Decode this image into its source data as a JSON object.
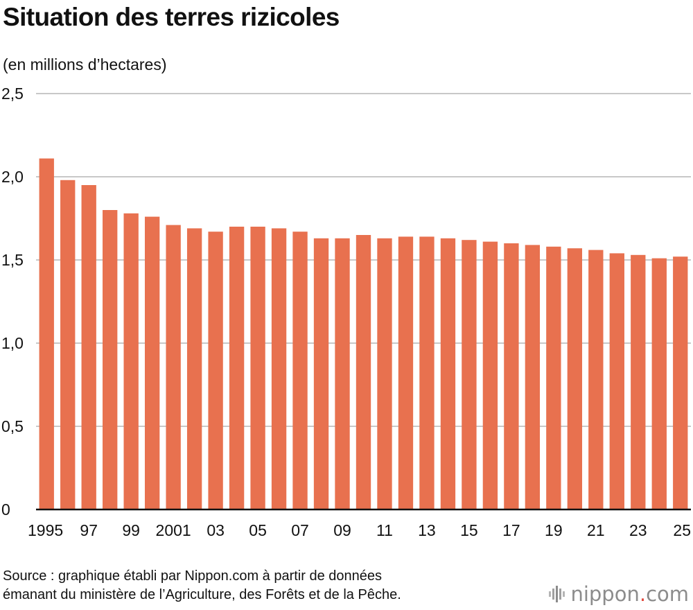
{
  "header": {
    "title": "Situation des terres rizicoles",
    "unit_label": "(en millions d’hectares)"
  },
  "chart_data": {
    "type": "bar",
    "title": "Situation des terres rizicoles",
    "ylabel": "(en millions d’hectares)",
    "xlabel": "",
    "ylim": [
      0,
      2.5
    ],
    "y_ticks": [
      0,
      0.5,
      1.0,
      1.5,
      2.0,
      2.5
    ],
    "y_tick_labels": [
      "0",
      "0,5",
      "1,0",
      "1,5",
      "2,0",
      "2,5"
    ],
    "categories": [
      "1995",
      "1996",
      "1997",
      "1998",
      "1999",
      "2000",
      "2001",
      "2002",
      "2003",
      "2004",
      "2005",
      "2006",
      "2007",
      "2008",
      "2009",
      "2010",
      "2011",
      "2012",
      "2013",
      "2014",
      "2015",
      "2016",
      "2017",
      "2018",
      "2019",
      "2020",
      "2021",
      "2022",
      "2023",
      "2024",
      "2025"
    ],
    "x_tick_labels": [
      "1995",
      "",
      "97",
      "",
      "99",
      "",
      "2001",
      "",
      "03",
      "",
      "05",
      "",
      "07",
      "",
      "09",
      "",
      "11",
      "",
      "13",
      "",
      "15",
      "",
      "17",
      "",
      "19",
      "",
      "21",
      "",
      "23",
      "",
      "25"
    ],
    "values": [
      2.11,
      1.98,
      1.95,
      1.8,
      1.78,
      1.76,
      1.71,
      1.69,
      1.67,
      1.7,
      1.7,
      1.69,
      1.67,
      1.63,
      1.63,
      1.65,
      1.63,
      1.64,
      1.64,
      1.63,
      1.62,
      1.61,
      1.6,
      1.59,
      1.58,
      1.57,
      1.56,
      1.54,
      1.53,
      1.51,
      1.52
    ],
    "grid": true,
    "legend": "none",
    "bar_color": "#e8714f",
    "grid_color": "#c8c8c8",
    "axis_color": "#111111"
  },
  "footer": {
    "source_line1": "Source : graphique établi par Nippon.com à partir de données",
    "source_line2": "émanant du ministère de l’Agriculture, des Forêts et de la Pêche.",
    "brand_name": "nippon",
    "brand_dot": ".",
    "brand_tld": "com",
    "brand_icon": "nippon-bars-logo-icon",
    "brand_color": "#8c8c8c",
    "brand_dot_color": "#e2483d"
  }
}
